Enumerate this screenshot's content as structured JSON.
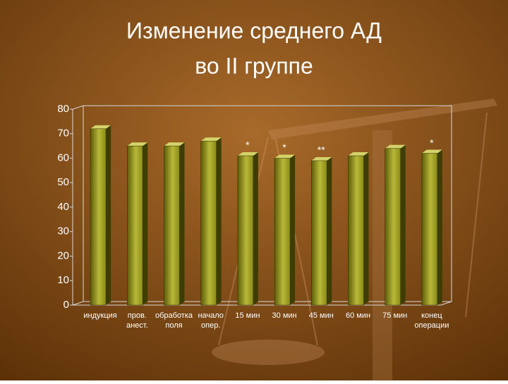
{
  "chart_data": {
    "type": "bar",
    "title": [
      "Изменение среднего АД",
      "во II группе"
    ],
    "categories": [
      [
        "индукция"
      ],
      [
        "пров.",
        "анест."
      ],
      [
        "обработка",
        "поля"
      ],
      [
        "начало",
        "опер."
      ],
      [
        "15 мин"
      ],
      [
        "30 мин"
      ],
      [
        "45 мин"
      ],
      [
        "60 мин"
      ],
      [
        "75 мин"
      ],
      [
        "конец",
        "операции"
      ]
    ],
    "values": [
      72,
      65,
      65,
      67,
      61,
      60,
      59,
      61,
      64,
      62
    ],
    "annotations": [
      null,
      null,
      null,
      null,
      "*",
      "*",
      "**",
      null,
      null,
      "*"
    ],
    "color": "#9a9a22",
    "ylim": [
      0,
      80
    ],
    "yticks": [
      0,
      10,
      20,
      30,
      40,
      50,
      60,
      70,
      80
    ],
    "grid": false
  }
}
